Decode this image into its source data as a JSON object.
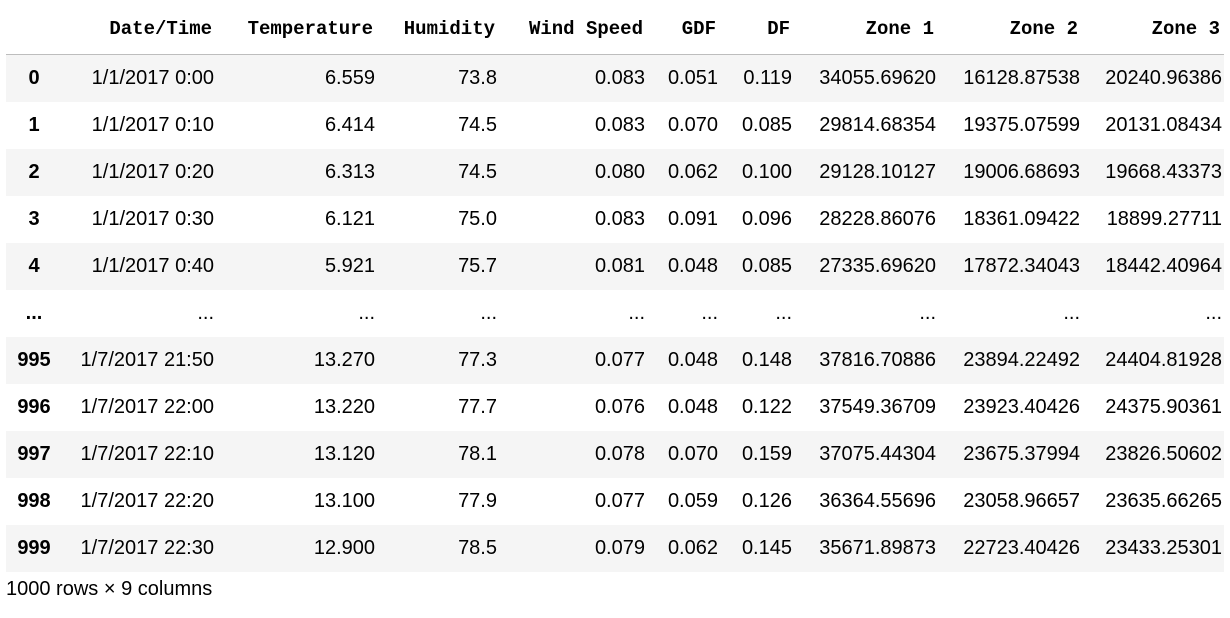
{
  "dataframe": {
    "index_header": "",
    "columns": [
      "Date/Time",
      "Temperature",
      "Humidity",
      "Wind Speed",
      "GDF",
      "DF",
      "Zone 1",
      "Zone 2",
      "Zone 3"
    ],
    "rows": [
      {
        "index": "0",
        "cells": [
          "1/1/2017 0:00",
          "6.559",
          "73.8",
          "0.083",
          "0.051",
          "0.119",
          "34055.69620",
          "16128.87538",
          "20240.96386"
        ]
      },
      {
        "index": "1",
        "cells": [
          "1/1/2017 0:10",
          "6.414",
          "74.5",
          "0.083",
          "0.070",
          "0.085",
          "29814.68354",
          "19375.07599",
          "20131.08434"
        ]
      },
      {
        "index": "2",
        "cells": [
          "1/1/2017 0:20",
          "6.313",
          "74.5",
          "0.080",
          "0.062",
          "0.100",
          "29128.10127",
          "19006.68693",
          "19668.43373"
        ]
      },
      {
        "index": "3",
        "cells": [
          "1/1/2017 0:30",
          "6.121",
          "75.0",
          "0.083",
          "0.091",
          "0.096",
          "28228.86076",
          "18361.09422",
          "18899.27711"
        ]
      },
      {
        "index": "4",
        "cells": [
          "1/1/2017 0:40",
          "5.921",
          "75.7",
          "0.081",
          "0.048",
          "0.085",
          "27335.69620",
          "17872.34043",
          "18442.40964"
        ]
      },
      {
        "index": "...",
        "cells": [
          "...",
          "...",
          "...",
          "...",
          "...",
          "...",
          "...",
          "...",
          "..."
        ]
      },
      {
        "index": "995",
        "cells": [
          "1/7/2017 21:50",
          "13.270",
          "77.3",
          "0.077",
          "0.048",
          "0.148",
          "37816.70886",
          "23894.22492",
          "24404.81928"
        ]
      },
      {
        "index": "996",
        "cells": [
          "1/7/2017 22:00",
          "13.220",
          "77.7",
          "0.076",
          "0.048",
          "0.122",
          "37549.36709",
          "23923.40426",
          "24375.90361"
        ]
      },
      {
        "index": "997",
        "cells": [
          "1/7/2017 22:10",
          "13.120",
          "78.1",
          "0.078",
          "0.070",
          "0.159",
          "37075.44304",
          "23675.37994",
          "23826.50602"
        ]
      },
      {
        "index": "998",
        "cells": [
          "1/7/2017 22:20",
          "13.100",
          "77.9",
          "0.077",
          "0.059",
          "0.126",
          "36364.55696",
          "23058.96657",
          "23635.66265"
        ]
      },
      {
        "index": "999",
        "cells": [
          "1/7/2017 22:30",
          "12.900",
          "78.5",
          "0.079",
          "0.062",
          "0.145",
          "35671.89873",
          "22723.40426",
          "23433.25301"
        ]
      }
    ],
    "shape_text": "1000 rows × 9 columns"
  },
  "colors": {
    "stripe": "#f5f5f5",
    "hover": "#e1f0fa",
    "rule": "#bdbdbd"
  }
}
